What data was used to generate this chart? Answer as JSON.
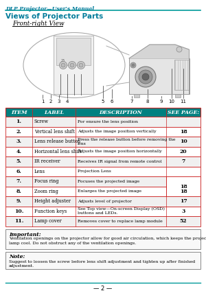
{
  "title_header": "DLP Projector—User's Manual",
  "section_title": "Views of Projector Parts",
  "subsection_title": "Front-right View",
  "table_header": [
    "ITEM",
    "LABEL",
    "DESCRIPTION",
    "SEE PAGE:"
  ],
  "table_rows": [
    [
      "1.",
      "Screw",
      "For ensure the lens position",
      ""
    ],
    [
      "2.",
      "Vertical lens shift",
      "Adjusts the image position vertically",
      "18"
    ],
    [
      "3.",
      "Lens release button",
      "Press the release button before removing the\nlens",
      "10"
    ],
    [
      "4.",
      "Horizontal lens shift",
      "Adjusts the image position horizontally",
      "20"
    ],
    [
      "5.",
      "IR receiver",
      "Receives IR signal from remote control",
      "7"
    ],
    [
      "6.",
      "Lens",
      "Projection Lens",
      ""
    ],
    [
      "7.",
      "Focus ring",
      "Focuses the projected image",
      ""
    ],
    [
      "8.",
      "Zoom ring",
      "Enlarges the projected image",
      "18"
    ],
    [
      "9.",
      "Height adjuster",
      "Adjusts level of projector",
      "17"
    ],
    [
      "10.",
      "Function keys",
      "See Top view—On-screen Display (OSD)\nbuttons and LEDs.",
      "3"
    ],
    [
      "11.",
      "Lamp cover",
      "Removes cover to replace lamp module",
      "52"
    ]
  ],
  "important_title": "Important:",
  "important_text": "Ventilation openings on the projector allow for good air circulation, which keeps the projector\nlamp cool. Do not obstruct any of the ventilation openings.",
  "note_title": "Note:",
  "note_text": "Suggest to loosen the screw before lens shift adjustment and tighten up after finished\nadjustment.",
  "footer_text": "— 2 —",
  "row_alt_color": "#F0F0F0",
  "row_color": "#FFFFFF",
  "border_color": "#CC2222",
  "header_bg": "#008080",
  "teal_color": "#007B9A",
  "header_line_color": "#009999"
}
